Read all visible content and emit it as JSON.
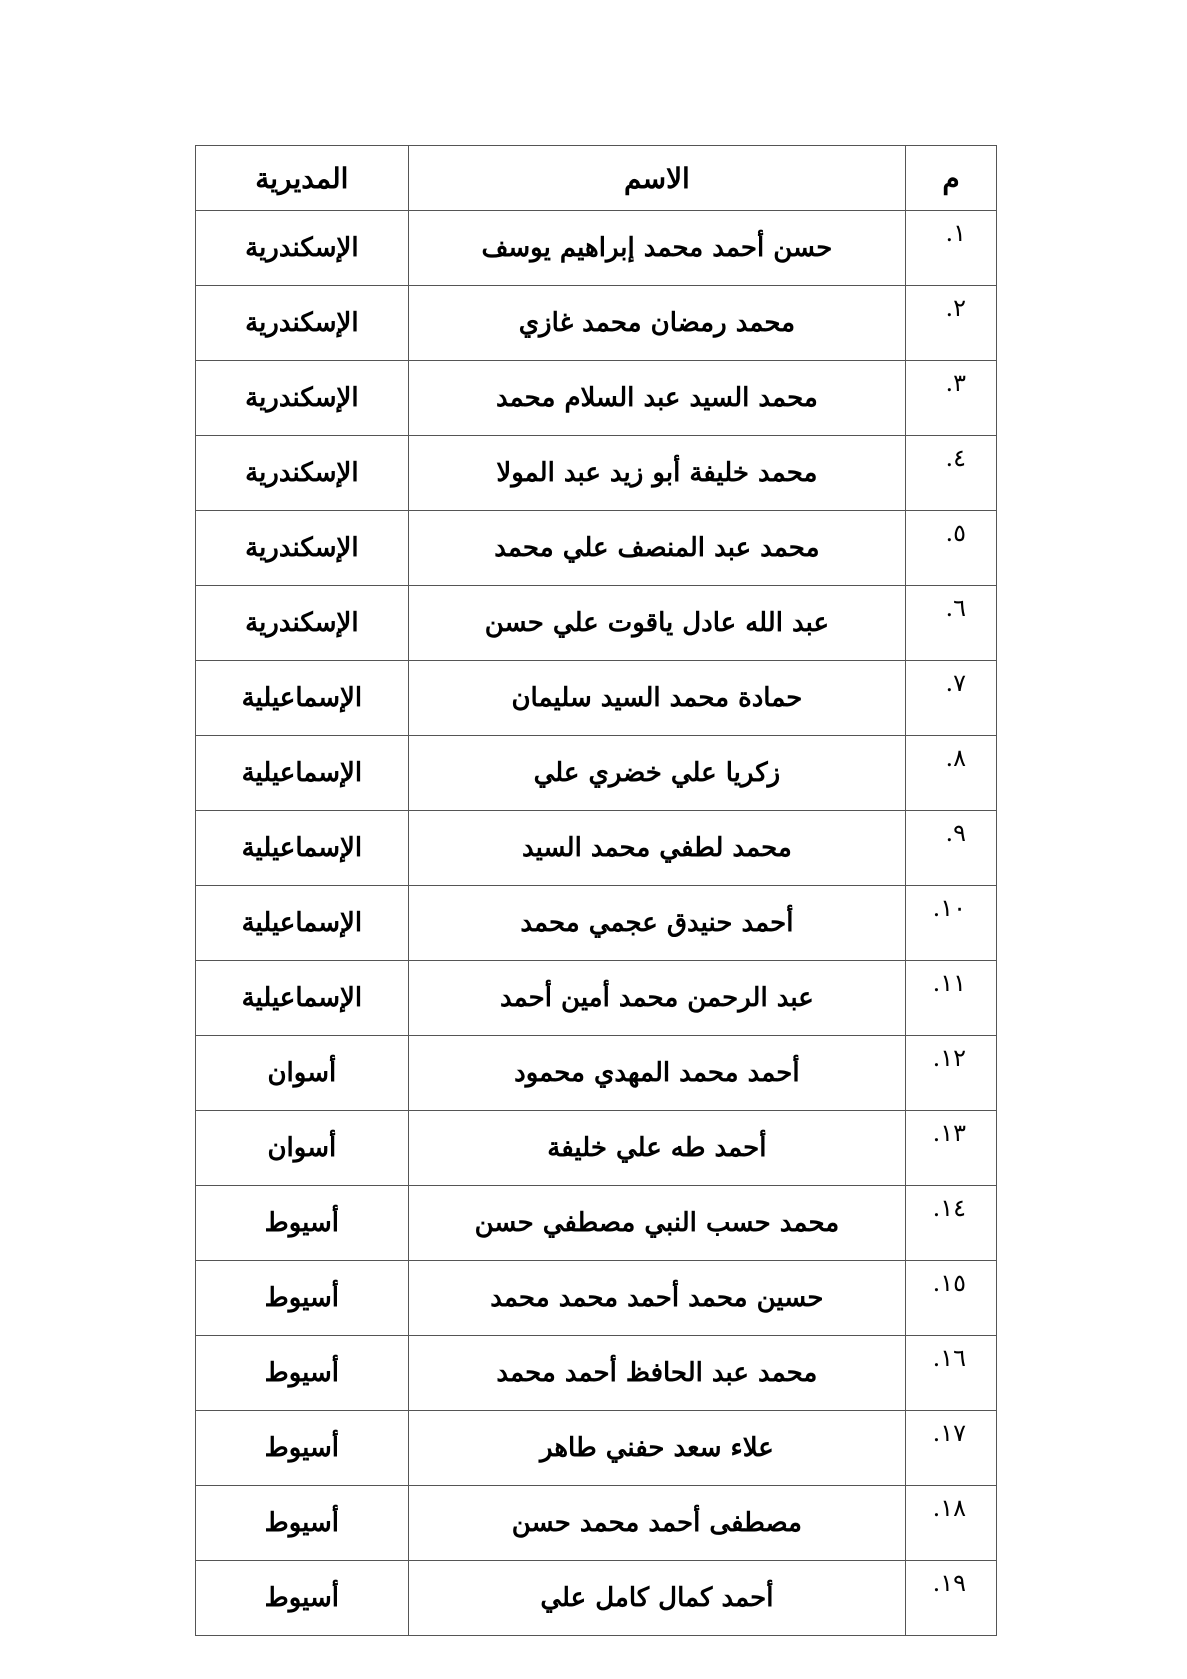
{
  "table": {
    "headers": {
      "number": "م",
      "name": "الاسم",
      "governorate": "المديرية"
    },
    "rows": [
      {
        "number": "١.",
        "name": "حسن أحمد محمد إبراهيم يوسف",
        "governorate": "الإسكندرية"
      },
      {
        "number": "٢.",
        "name": "محمد رمضان محمد غازي",
        "governorate": "الإسكندرية"
      },
      {
        "number": "٣.",
        "name": "محمد السيد عبد السلام محمد",
        "governorate": "الإسكندرية"
      },
      {
        "number": "٤.",
        "name": "محمد خليفة أبو زيد عبد المولا",
        "governorate": "الإسكندرية"
      },
      {
        "number": "٥.",
        "name": "محمد عبد المنصف علي محمد",
        "governorate": "الإسكندرية"
      },
      {
        "number": "٦.",
        "name": "عبد الله عادل ياقوت علي حسن",
        "governorate": "الإسكندرية"
      },
      {
        "number": "٧.",
        "name": "حمادة محمد السيد سليمان",
        "governorate": "الإسماعيلية"
      },
      {
        "number": "٨.",
        "name": "زكريا علي خضري علي",
        "governorate": "الإسماعيلية"
      },
      {
        "number": "٩.",
        "name": "محمد لطفي محمد السيد",
        "governorate": "الإسماعيلية"
      },
      {
        "number": "١٠.",
        "name": "أحمد حنيدق عجمي محمد",
        "governorate": "الإسماعيلية"
      },
      {
        "number": "١١.",
        "name": "عبد الرحمن محمد أمين أحمد",
        "governorate": "الإسماعيلية"
      },
      {
        "number": "١٢.",
        "name": "أحمد محمد المهدي محمود",
        "governorate": "أسوان"
      },
      {
        "number": "١٣.",
        "name": "أحمد طه علي خليفة",
        "governorate": "أسوان"
      },
      {
        "number": "١٤.",
        "name": "محمد حسب النبي مصطفي حسن",
        "governorate": "أسيوط"
      },
      {
        "number": "١٥.",
        "name": "حسين محمد أحمد محمد محمد",
        "governorate": "أسيوط"
      },
      {
        "number": "١٦.",
        "name": "محمد عبد الحافظ أحمد محمد",
        "governorate": "أسيوط"
      },
      {
        "number": "١٧.",
        "name": "علاء سعد حفني طاهر",
        "governorate": "أسيوط"
      },
      {
        "number": "١٨.",
        "name": "مصطفى أحمد محمد حسن",
        "governorate": "أسيوط"
      },
      {
        "number": "١٩.",
        "name": "أحمد كمال كامل علي",
        "governorate": "أسيوط"
      }
    ]
  }
}
